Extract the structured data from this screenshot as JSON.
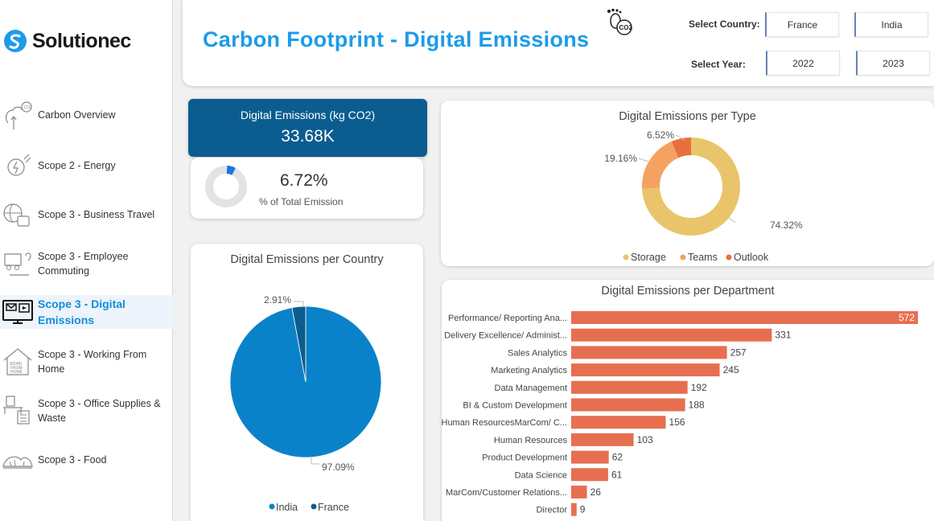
{
  "brand": {
    "name": "Solutionec"
  },
  "sidebar": {
    "items": [
      {
        "label": "Carbon Overview",
        "icon": "carbon-overview-icon"
      },
      {
        "label": "Scope 2 - Energy",
        "icon": "energy-plug-icon"
      },
      {
        "label": "Scope 3 - Business Travel",
        "icon": "business-travel-icon"
      },
      {
        "label": "Scope 3 - Employee Commuting",
        "icon": "commuting-icon"
      },
      {
        "label": "Scope 3 - Digital Emissions",
        "icon": "digital-emissions-icon"
      },
      {
        "label": "Scope 3 - Working From Home",
        "icon": "work-from-home-icon"
      },
      {
        "label": "Scope 3 - Office Supplies & Waste",
        "icon": "office-supplies-icon"
      },
      {
        "label": "Scope 3 - Food",
        "icon": "food-icon"
      }
    ],
    "active_index": 4
  },
  "header": {
    "title": "Carbon Footprint - Digital Emissions",
    "country_label": "Select Country:",
    "countries": [
      "France",
      "India"
    ],
    "year_label": "Select Year:",
    "years": [
      "2022",
      "2023"
    ]
  },
  "kpi": {
    "label": "Digital Emissions (kg CO2)",
    "value": "33.68K",
    "pct_value": "6.72%",
    "pct_label": "% of Total Emission",
    "pct_fraction": 0.0672
  },
  "colors": {
    "title": "#1d9be8",
    "kpi_bg": "#0b5d8f",
    "storage": "#e9c46a",
    "teams": "#f4a261",
    "outlook": "#e76f3c",
    "india": "#0a82c9",
    "france": "#0b5d8f",
    "bars": "#e76f51"
  },
  "chart_data": [
    {
      "type": "pie",
      "title": "Digital Emissions per Type",
      "labels": [
        "Storage",
        "Teams",
        "Outlook"
      ],
      "values": [
        74.32,
        19.16,
        6.52
      ],
      "data_labels": [
        "74.32%",
        "19.16%",
        "6.52%"
      ],
      "donut": true,
      "legend": "bottom"
    },
    {
      "type": "pie",
      "title": "Digital Emissions per Country",
      "labels": [
        "India",
        "France"
      ],
      "values": [
        97.09,
        2.91
      ],
      "data_labels": [
        "97.09%",
        "2.91%"
      ],
      "legend": "bottom"
    },
    {
      "type": "bar",
      "orientation": "horizontal",
      "title": "Digital Emissions per Department",
      "categories": [
        "Performance/ Reporting Ana...",
        "Delivery Excellence/ Administ...",
        "Sales Analytics",
        "Marketing Analytics",
        "Data Management",
        "BI & Custom Development",
        "Human ResourcesMarCom/ C...",
        "Human Resources",
        "Product Development",
        "Data Science",
        "MarCom/Customer Relations...",
        "Director"
      ],
      "values": [
        572,
        331,
        257,
        245,
        192,
        188,
        156,
        103,
        62,
        61,
        26,
        9
      ]
    }
  ]
}
